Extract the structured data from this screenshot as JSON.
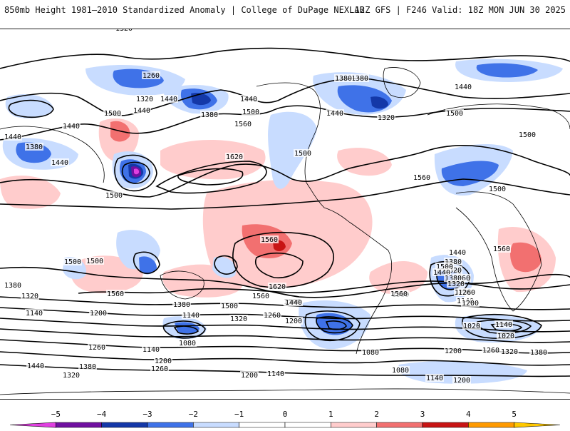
{
  "header": {
    "title": "850mb Height 1981–2010 Standardized Anomaly | College of DuPage NEXLAB",
    "run": "12Z GFS | F246 Valid: 18Z MON JUN 30 2025"
  },
  "colors": {
    "neg5": "#e040e0",
    "neg4": "#7010a0",
    "neg3": "#1438a8",
    "neg2": "#3f72e8",
    "neg1": "#c8dcff",
    "zero": "#ffffff",
    "pos1": "#ffcccc",
    "pos2": "#f27070",
    "pos3": "#c81414",
    "pos4": "#ff9a00",
    "pos5": "#ffc800",
    "contour": "#000000",
    "coast": "#000000"
  },
  "colorbar": {
    "ticks": [
      "−5",
      "−4",
      "−3",
      "−2",
      "−1",
      "0",
      "1",
      "2",
      "3",
      "4",
      "5"
    ]
  },
  "contour_labels": [
    {
      "text": "1320"
    },
    {
      "text": "1380"
    },
    {
      "text": "1260"
    },
    {
      "text": "1320"
    },
    {
      "text": "1440"
    },
    {
      "text": "1500"
    },
    {
      "text": "1440"
    },
    {
      "text": "1440"
    },
    {
      "text": "1380"
    },
    {
      "text": "1440"
    },
    {
      "text": "1380"
    },
    {
      "text": "1440"
    },
    {
      "text": "1440"
    },
    {
      "text": "1500"
    },
    {
      "text": "1560"
    },
    {
      "text": "1620"
    },
    {
      "text": "1500"
    },
    {
      "text": "1500"
    },
    {
      "text": "1560"
    },
    {
      "text": "1500"
    },
    {
      "text": "1380"
    },
    {
      "text": "1320"
    },
    {
      "text": "1440"
    },
    {
      "text": "1440"
    },
    {
      "text": "1500"
    },
    {
      "text": "1500"
    },
    {
      "text": "1560"
    },
    {
      "text": "1560"
    },
    {
      "text": "1500"
    },
    {
      "text": "1380"
    },
    {
      "text": "1320"
    },
    {
      "text": "1140"
    },
    {
      "text": "1560"
    },
    {
      "text": "1620"
    },
    {
      "text": "1560"
    },
    {
      "text": "1500"
    },
    {
      "text": "1440"
    },
    {
      "text": "1380"
    },
    {
      "text": "1320"
    },
    {
      "text": "1260"
    },
    {
      "text": "1200"
    },
    {
      "text": "1140"
    },
    {
      "text": "1080"
    },
    {
      "text": "1440"
    },
    {
      "text": "1380"
    },
    {
      "text": "1320"
    },
    {
      "text": "1260"
    },
    {
      "text": "1200"
    },
    {
      "text": "1140"
    },
    {
      "text": "1020"
    },
    {
      "text": "1080"
    },
    {
      "text": "1560"
    },
    {
      "text": "1500"
    },
    {
      "text": "1440"
    },
    {
      "text": "1380"
    },
    {
      "text": "1320"
    },
    {
      "text": "1260"
    },
    {
      "text": "1200"
    },
    {
      "text": "1560"
    },
    {
      "text": "1140"
    },
    {
      "text": "1020"
    },
    {
      "text": "1200"
    },
    {
      "text": "1260"
    },
    {
      "text": "1320"
    },
    {
      "text": "1380"
    },
    {
      "text": "1260"
    },
    {
      "text": "1200"
    },
    {
      "text": "1140"
    },
    {
      "text": "1200"
    },
    {
      "text": "1440"
    },
    {
      "text": "1380"
    },
    {
      "text": "1320"
    },
    {
      "text": "1260"
    },
    {
      "text": "1140"
    },
    {
      "text": "1200"
    },
    {
      "text": "1080"
    },
    {
      "text": "1140"
    },
    {
      "text": "1200"
    },
    {
      "text": "1500"
    },
    {
      "text": "1500"
    }
  ]
}
